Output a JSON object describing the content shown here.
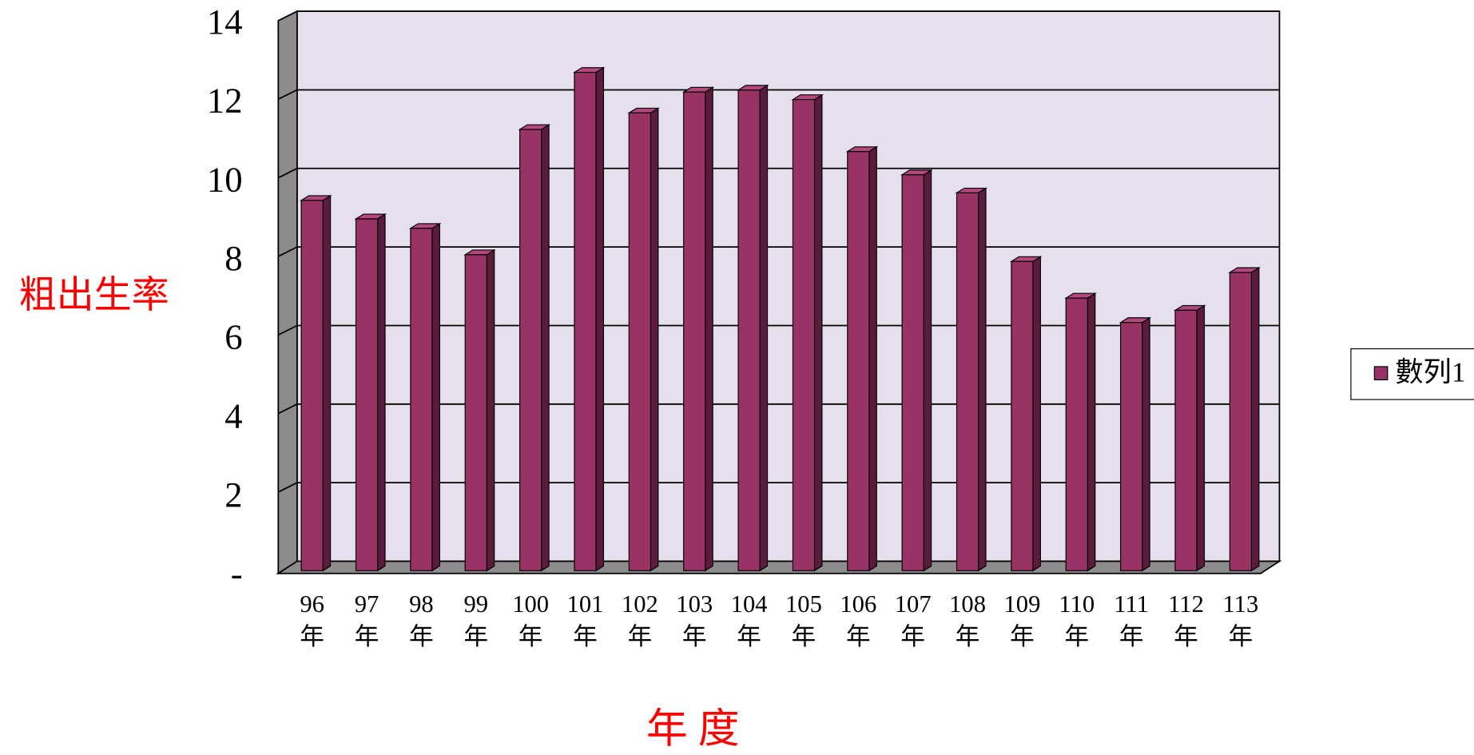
{
  "chart_data": {
    "type": "bar3d",
    "x_label": "年 度",
    "y_label": "粗出生率",
    "categories": [
      "96年",
      "97年",
      "98年",
      "99年",
      "100年",
      "101年",
      "102年",
      "103年",
      "104年",
      "105年",
      "106年",
      "107年",
      "108年",
      "109年",
      "110年",
      "111年",
      "112年",
      "113年"
    ],
    "series": [
      {
        "name": "數列1",
        "color": "#993366",
        "values": [
          9.4,
          8.93,
          8.69,
          8.02,
          11.2,
          12.65,
          11.62,
          12.15,
          12.2,
          11.96,
          10.64,
          10.05,
          9.59,
          7.85,
          6.92,
          6.3,
          6.61,
          7.57
        ]
      }
    ],
    "ylim": [
      0,
      14
    ],
    "yticks": [
      {
        "value": 0,
        "label": "-"
      },
      2,
      4,
      6,
      8,
      10,
      12,
      14
    ],
    "grid": true,
    "legend": "right"
  }
}
